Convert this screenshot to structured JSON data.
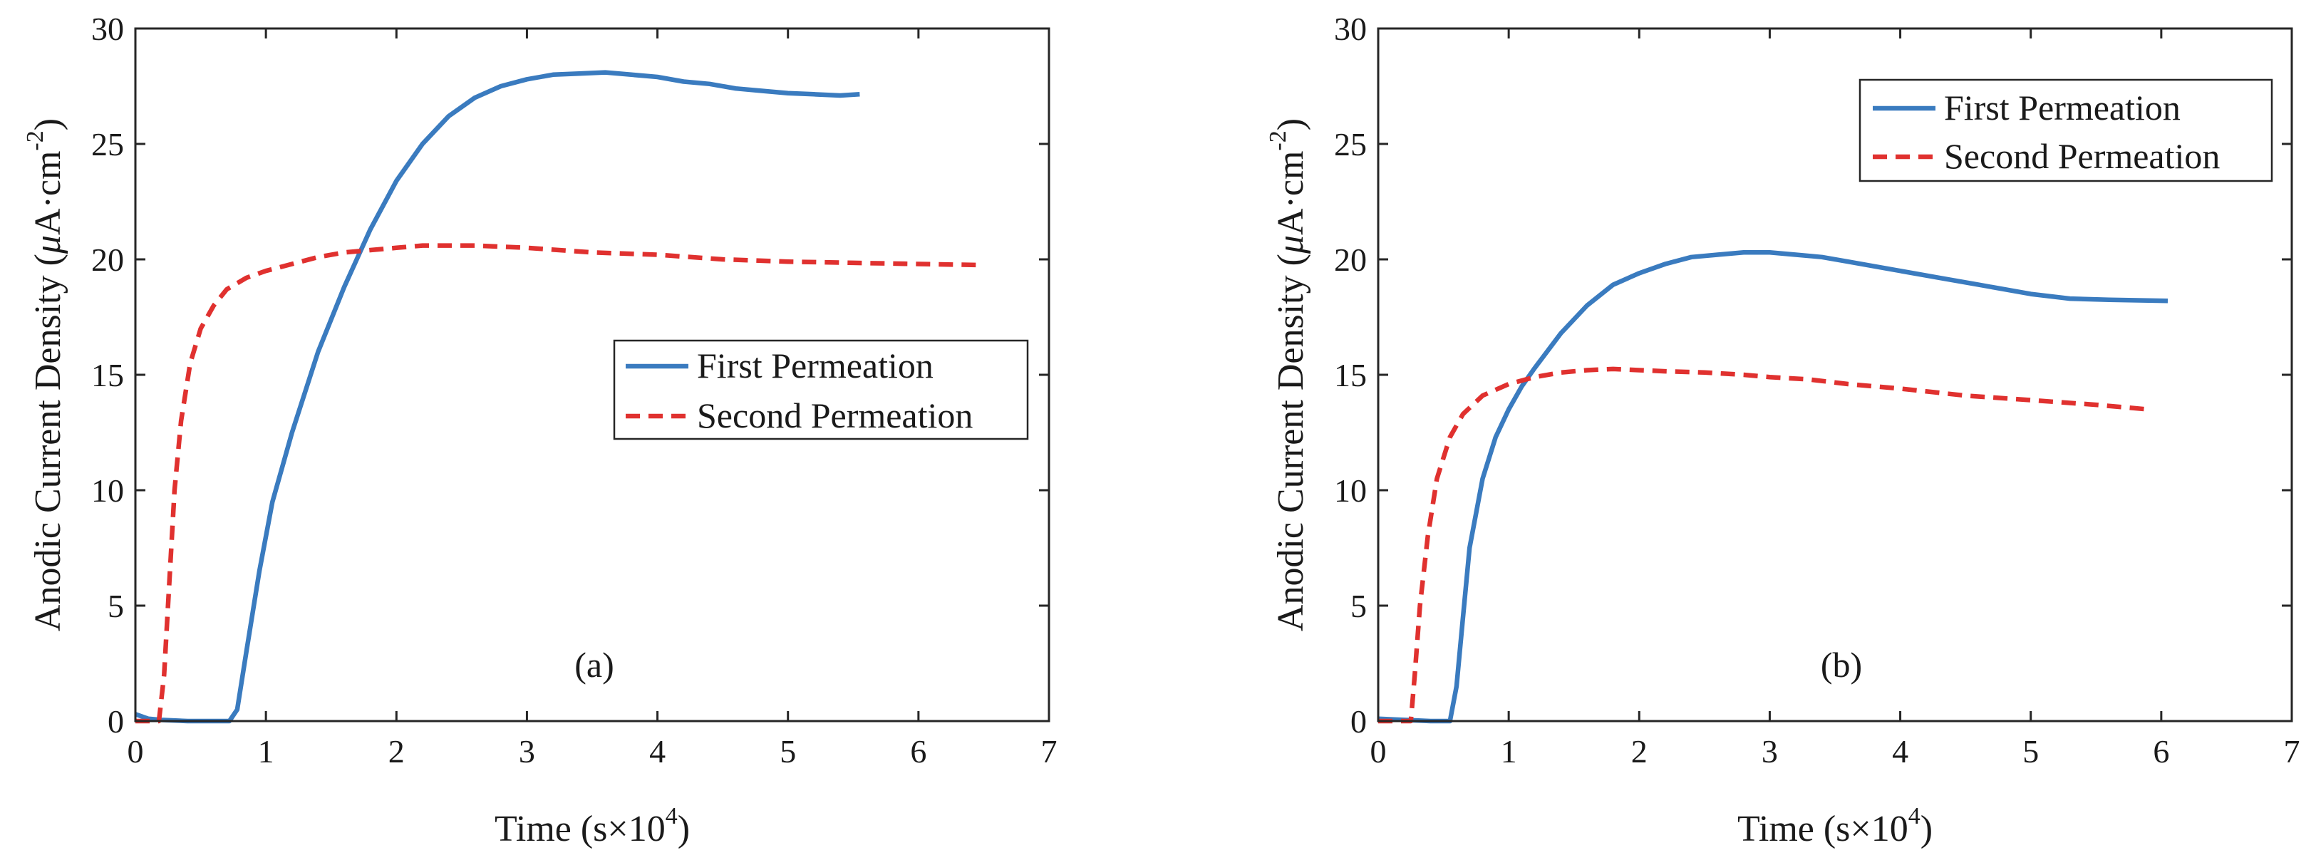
{
  "colors": {
    "first_permeation": "#3a7bbf",
    "second_permeation": "#e0312f",
    "axes": "#262626"
  },
  "chart_data": [
    {
      "type": "line",
      "panel_label": "(a)",
      "xlabel_prefix": "Time (s",
      "xlabel_times": "×",
      "xlabel_base": "10",
      "xlabel_exp": "4",
      "xlabel_suffix": ")",
      "ylabel_prefix": "Anodic Current Density (",
      "ylabel_mu": "μ",
      "ylabel_unit": "A·cm",
      "ylabel_exp": "-2",
      "ylabel_suffix": ")",
      "xlim": [
        0,
        7
      ],
      "ylim": [
        0,
        30
      ],
      "xticks": [
        0,
        1,
        2,
        3,
        4,
        5,
        6,
        7
      ],
      "yticks": [
        0,
        5,
        10,
        15,
        20,
        25,
        30
      ],
      "legend_position": "center-right",
      "series": [
        {
          "name": "First Permeation",
          "style": "solid",
          "x": [
            0,
            0.1,
            0.2,
            0.4,
            0.6,
            0.72,
            0.78,
            0.85,
            0.95,
            1.05,
            1.2,
            1.4,
            1.6,
            1.8,
            2.0,
            2.2,
            2.4,
            2.6,
            2.8,
            3.0,
            3.2,
            3.4,
            3.6,
            3.8,
            4.0,
            4.2,
            4.4,
            4.6,
            4.8,
            5.0,
            5.2,
            5.4,
            5.55
          ],
          "y": [
            0.3,
            0.1,
            0.05,
            0.0,
            0.0,
            0.0,
            0.5,
            3.0,
            6.5,
            9.5,
            12.5,
            16.0,
            18.8,
            21.3,
            23.4,
            25.0,
            26.2,
            27.0,
            27.5,
            27.8,
            28.0,
            28.05,
            28.1,
            28.0,
            27.9,
            27.7,
            27.6,
            27.4,
            27.3,
            27.2,
            27.15,
            27.1,
            27.15
          ]
        },
        {
          "name": "Second Permeation",
          "style": "dashed",
          "x": [
            0,
            0.1,
            0.18,
            0.22,
            0.26,
            0.3,
            0.35,
            0.42,
            0.5,
            0.6,
            0.7,
            0.85,
            1.0,
            1.2,
            1.4,
            1.6,
            1.8,
            2.0,
            2.2,
            2.4,
            2.6,
            2.8,
            3.0,
            3.5,
            4.0,
            4.5,
            5.0,
            5.5,
            6.0,
            6.5
          ],
          "y": [
            0.0,
            0.0,
            0.0,
            2.0,
            6.0,
            10.0,
            13.0,
            15.5,
            17.0,
            18.0,
            18.7,
            19.2,
            19.5,
            19.8,
            20.1,
            20.3,
            20.4,
            20.5,
            20.6,
            20.6,
            20.6,
            20.55,
            20.5,
            20.3,
            20.2,
            20.0,
            19.9,
            19.85,
            19.8,
            19.75
          ]
        }
      ]
    },
    {
      "type": "line",
      "panel_label": "(b)",
      "xlabel_prefix": "Time (s",
      "xlabel_times": "×",
      "xlabel_base": "10",
      "xlabel_exp": "4",
      "xlabel_suffix": ")",
      "ylabel_prefix": "Anodic Current Density (",
      "ylabel_mu": "μ",
      "ylabel_unit": "A·cm",
      "ylabel_exp": "-2",
      "ylabel_suffix": ")",
      "xlim": [
        0,
        7
      ],
      "ylim": [
        0,
        30
      ],
      "xticks": [
        0,
        1,
        2,
        3,
        4,
        5,
        6,
        7
      ],
      "yticks": [
        0,
        5,
        10,
        15,
        20,
        25,
        30
      ],
      "legend_position": "top-right",
      "series": [
        {
          "name": "First Permeation",
          "style": "solid",
          "x": [
            0,
            0.2,
            0.4,
            0.55,
            0.6,
            0.65,
            0.7,
            0.8,
            0.9,
            1.0,
            1.1,
            1.2,
            1.4,
            1.6,
            1.8,
            2.0,
            2.2,
            2.4,
            2.6,
            2.8,
            3.0,
            3.2,
            3.4,
            3.6,
            3.8,
            4.0,
            4.3,
            4.6,
            5.0,
            5.3,
            5.6,
            6.05
          ],
          "y": [
            0.1,
            0.05,
            0.0,
            0.0,
            1.5,
            4.5,
            7.5,
            10.5,
            12.3,
            13.5,
            14.5,
            15.3,
            16.8,
            18.0,
            18.9,
            19.4,
            19.8,
            20.1,
            20.2,
            20.3,
            20.3,
            20.2,
            20.1,
            19.9,
            19.7,
            19.5,
            19.2,
            18.9,
            18.5,
            18.3,
            18.25,
            18.2
          ]
        },
        {
          "name": "Second Permeation",
          "style": "dashed",
          "x": [
            0,
            0.1,
            0.2,
            0.25,
            0.28,
            0.32,
            0.38,
            0.45,
            0.55,
            0.65,
            0.8,
            1.0,
            1.2,
            1.4,
            1.6,
            1.8,
            2.0,
            2.2,
            2.5,
            2.8,
            3.0,
            3.3,
            3.6,
            4.0,
            4.5,
            5.0,
            5.5,
            5.9
          ],
          "y": [
            0.0,
            0.0,
            0.0,
            0.0,
            2.0,
            5.0,
            8.0,
            10.5,
            12.3,
            13.3,
            14.1,
            14.6,
            14.9,
            15.1,
            15.2,
            15.25,
            15.2,
            15.15,
            15.1,
            15.0,
            14.9,
            14.8,
            14.6,
            14.4,
            14.1,
            13.9,
            13.7,
            13.5
          ]
        }
      ]
    }
  ]
}
